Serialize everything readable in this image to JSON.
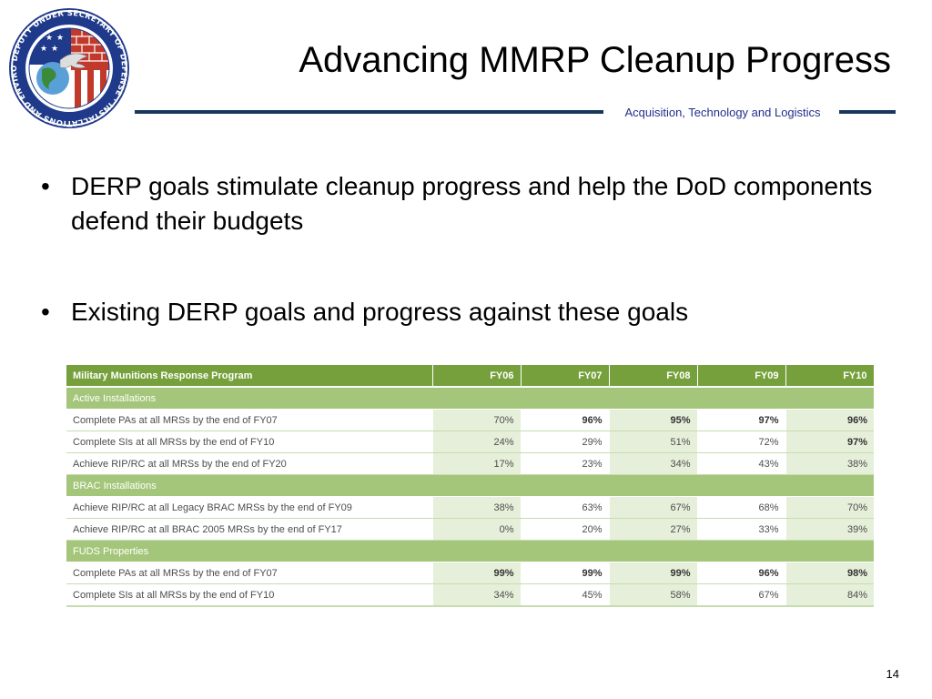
{
  "header": {
    "title": "Advancing MMRP Cleanup Progress",
    "subtitle": "Acquisition, Technology and Logistics",
    "logo": {
      "icon": "deputy-under-secretary-of-defense-seal-icon",
      "text": "DEPUTY UNDER SECRETARY OF DEFENSE · INSTALLATIONS AND ENVIRONMENT"
    }
  },
  "bullets": [
    {
      "marker": "•",
      "text": "DERP goals stimulate cleanup progress and help the DoD components defend their budgets"
    },
    {
      "marker": "•",
      "text": "Existing DERP goals and progress against these goals"
    }
  ],
  "table": {
    "columns": [
      "Military Munitions Response Program",
      "FY06",
      "FY07",
      "FY08",
      "FY09",
      "FY10"
    ],
    "sections": [
      {
        "name": "Active Installations",
        "rows": [
          {
            "label": "Complete PAs at all MRSs by the end of FY07",
            "values": [
              "70%",
              "96%",
              "95%",
              "97%",
              "96%"
            ],
            "bold": [
              false,
              true,
              true,
              true,
              true
            ]
          },
          {
            "label": "Complete SIs at all MRSs by the end of FY10",
            "values": [
              "24%",
              "29%",
              "51%",
              "72%",
              "97%"
            ],
            "bold": [
              false,
              false,
              false,
              false,
              true
            ]
          },
          {
            "label": "Achieve RIP/RC at all MRSs by the end of FY20",
            "values": [
              "17%",
              "23%",
              "34%",
              "43%",
              "38%"
            ],
            "bold": [
              false,
              false,
              false,
              false,
              false
            ]
          }
        ]
      },
      {
        "name": "BRAC Installations",
        "rows": [
          {
            "label": "Achieve RIP/RC at all Legacy BRAC MRSs by the end of FY09",
            "values": [
              "38%",
              "63%",
              "67%",
              "68%",
              "70%"
            ],
            "bold": [
              false,
              false,
              false,
              false,
              false
            ]
          },
          {
            "label": "Achieve RIP/RC at all BRAC 2005 MRSs by the end of FY17",
            "values": [
              "0%",
              "20%",
              "27%",
              "33%",
              "39%"
            ],
            "bold": [
              false,
              false,
              false,
              false,
              false
            ]
          }
        ]
      },
      {
        "name": "FUDS Properties",
        "rows": [
          {
            "label": "Complete PAs at all MRSs by the end of FY07",
            "values": [
              "99%",
              "99%",
              "99%",
              "96%",
              "98%"
            ],
            "bold": [
              true,
              true,
              true,
              true,
              true
            ]
          },
          {
            "label": "Complete SIs at all MRSs by the end of FY10",
            "values": [
              "34%",
              "45%",
              "58%",
              "67%",
              "84%"
            ],
            "bold": [
              false,
              false,
              false,
              false,
              false
            ]
          }
        ]
      }
    ]
  },
  "footer": {
    "page_number": "14"
  },
  "colors": {
    "header_green": "#76a03c",
    "section_green": "#a4c67a",
    "cell_shade": "#e6efd9",
    "rule_navy": "#17375e",
    "subtitle_blue": "#1f2f8f"
  }
}
